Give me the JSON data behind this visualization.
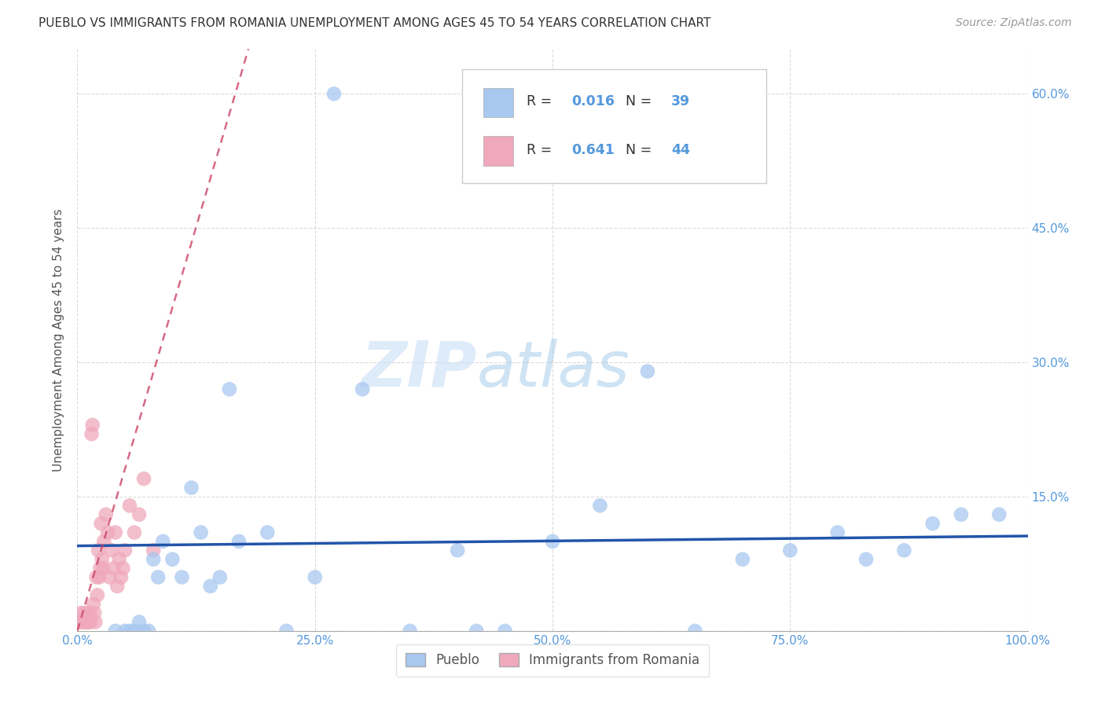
{
  "title": "PUEBLO VS IMMIGRANTS FROM ROMANIA UNEMPLOYMENT AMONG AGES 45 TO 54 YEARS CORRELATION CHART",
  "source": "Source: ZipAtlas.com",
  "tick_color": "#5599dd",
  "ylabel": "Unemployment Among Ages 45 to 54 years",
  "xlim": [
    0,
    1.0
  ],
  "ylim": [
    0,
    0.65
  ],
  "xticks": [
    0.0,
    0.25,
    0.5,
    0.75,
    1.0
  ],
  "xtick_labels": [
    "0.0%",
    "25.0%",
    "50.0%",
    "75.0%",
    "100.0%"
  ],
  "yticks": [
    0.0,
    0.15,
    0.3,
    0.45,
    0.6
  ],
  "ytick_labels_right": [
    "",
    "15.0%",
    "30.0%",
    "45.0%",
    "60.0%"
  ],
  "pueblo_R": "0.016",
  "pueblo_N": "39",
  "romania_R": "0.641",
  "romania_N": "44",
  "legend_labels": [
    "Pueblo",
    "Immigrants from Romania"
  ],
  "watermark_zip": "ZIP",
  "watermark_atlas": "atlas",
  "blue_color": "#a8c8f0",
  "pink_color": "#f0a8bc",
  "blue_dark": "#2255aa",
  "pink_dark": "#cc4466",
  "pueblo_x": [
    0.04,
    0.05,
    0.055,
    0.06,
    0.065,
    0.07,
    0.075,
    0.08,
    0.085,
    0.09,
    0.1,
    0.11,
    0.12,
    0.13,
    0.14,
    0.15,
    0.16,
    0.17,
    0.2,
    0.22,
    0.25,
    0.27,
    0.3,
    0.35,
    0.4,
    0.42,
    0.45,
    0.5,
    0.55,
    0.6,
    0.65,
    0.7,
    0.75,
    0.8,
    0.83,
    0.87,
    0.9,
    0.93,
    0.97
  ],
  "pueblo_y": [
    0.0,
    0.0,
    0.0,
    0.0,
    0.01,
    0.0,
    0.0,
    0.08,
    0.06,
    0.1,
    0.08,
    0.06,
    0.16,
    0.11,
    0.05,
    0.06,
    0.27,
    0.1,
    0.11,
    0.0,
    0.06,
    0.6,
    0.27,
    0.0,
    0.09,
    0.0,
    0.0,
    0.1,
    0.14,
    0.29,
    0.0,
    0.08,
    0.09,
    0.11,
    0.08,
    0.09,
    0.12,
    0.13,
    0.13
  ],
  "romania_x": [
    0.001,
    0.002,
    0.003,
    0.004,
    0.005,
    0.006,
    0.007,
    0.008,
    0.009,
    0.01,
    0.011,
    0.012,
    0.013,
    0.014,
    0.015,
    0.016,
    0.017,
    0.018,
    0.019,
    0.02,
    0.021,
    0.022,
    0.023,
    0.024,
    0.025,
    0.026,
    0.027,
    0.028,
    0.03,
    0.032,
    0.034,
    0.036,
    0.038,
    0.04,
    0.042,
    0.044,
    0.046,
    0.048,
    0.05,
    0.055,
    0.06,
    0.065,
    0.07,
    0.08
  ],
  "romania_y": [
    0.01,
    0.01,
    0.01,
    0.02,
    0.01,
    0.01,
    0.01,
    0.02,
    0.01,
    0.01,
    0.01,
    0.01,
    0.02,
    0.01,
    0.22,
    0.23,
    0.03,
    0.02,
    0.01,
    0.06,
    0.04,
    0.09,
    0.06,
    0.07,
    0.12,
    0.08,
    0.07,
    0.1,
    0.13,
    0.11,
    0.06,
    0.09,
    0.07,
    0.11,
    0.05,
    0.08,
    0.06,
    0.07,
    0.09,
    0.14,
    0.11,
    0.13,
    0.17,
    0.09
  ],
  "pueblo_trend_x": [
    0.0,
    1.0
  ],
  "pueblo_trend_y": [
    0.095,
    0.106
  ],
  "romania_trend_x0": 0.0,
  "romania_trend_y0": 0.0,
  "romania_trend_x1": 0.18,
  "romania_trend_y1": 0.65
}
